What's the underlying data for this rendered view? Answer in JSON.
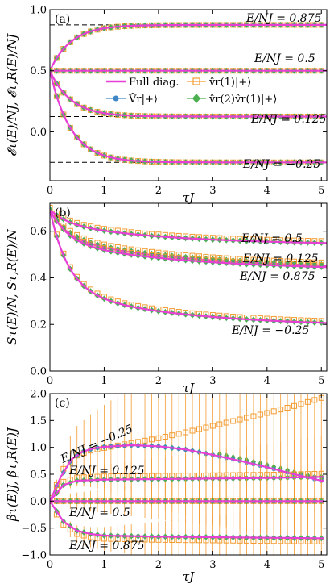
{
  "chart_data": [
    {
      "type": "line",
      "panel_label": "(a)",
      "xlabel": "τJ",
      "ylabel": "𝓔τ(E)/NJ, 𝓔τ,R(E)/NJ",
      "xlim": [
        0,
        5.1
      ],
      "ylim": [
        -0.4,
        1.0
      ],
      "x_ticks": [
        "0",
        "1",
        "2",
        "3",
        "4",
        "5"
      ],
      "y_ticks": [
        "0.0",
        "0.5",
        "1.0"
      ],
      "y_tick_values": [
        0.0,
        0.5,
        1.0
      ],
      "grid": false,
      "reference_lines": [
        0.875,
        0.5,
        0.125,
        -0.25
      ],
      "annotations": [
        "E/NJ = 0.875",
        "E/NJ = 0.5",
        "E/NJ = 0.125",
        "E/NJ = −0.25"
      ],
      "legend": {
        "placement": "center",
        "entries": [
          "Full diag.",
          "V̂r|+⟩",
          "v̂r(1)|+⟩",
          "v̂r(2)v̂r(1)|+⟩"
        ]
      },
      "series": [
        {
          "label": "E/NJ = 0.875",
          "start": 0.5,
          "final": 0.875,
          "rate": 2.6
        },
        {
          "label": "E/NJ = 0.5",
          "start": 0.5,
          "final": 0.5,
          "rate": 2.6
        },
        {
          "label": "E/NJ = 0.125",
          "start": 0.5,
          "final": 0.125,
          "rate": 2.6
        },
        {
          "label": "E/NJ = −0.25",
          "start": 0.5,
          "final": -0.25,
          "rate": 2.6
        }
      ]
    },
    {
      "type": "line",
      "panel_label": "(b)",
      "xlabel": "τJ",
      "ylabel": "Sτ(E)/N, Sτ,R(E)/N",
      "xlim": [
        0,
        5.1
      ],
      "ylim": [
        0.0,
        0.72
      ],
      "x_ticks": [
        "0",
        "1",
        "2",
        "3",
        "4",
        "5"
      ],
      "y_ticks": [
        "0.0",
        "0.2",
        "0.4",
        "0.6"
      ],
      "y_tick_values": [
        0.0,
        0.2,
        0.4,
        0.6
      ],
      "grid": false,
      "annotations": [
        "E/NJ = 0.5",
        "E/NJ = 0.125",
        "E/NJ = 0.875",
        "E/NJ = −0.25"
      ],
      "series": [
        {
          "label": "E/NJ = 0.5",
          "start": 0.693,
          "final": 0.54,
          "fast": 0.06,
          "fast_rate": 3.0,
          "slow_rate": 0.45
        },
        {
          "label": "E/NJ = 0.125",
          "start": 0.693,
          "final": 0.44,
          "fast": 0.12,
          "fast_rate": 3.0,
          "slow_rate": 0.4
        },
        {
          "label": "E/NJ = 0.875",
          "start": 0.693,
          "final": 0.43,
          "fast": 0.14,
          "fast_rate": 3.0,
          "slow_rate": 0.4
        },
        {
          "label": "E/NJ = −0.25",
          "start": 0.693,
          "final": 0.19,
          "fast": 0.34,
          "fast_rate": 3.0,
          "slow_rate": 0.45
        }
      ]
    },
    {
      "type": "line",
      "panel_label": "(c)",
      "xlabel": "τJ",
      "ylabel": "βτ(E)J, βτ,R(E)J",
      "xlim": [
        0,
        5.1
      ],
      "ylim": [
        -1.0,
        2.0
      ],
      "x_ticks": [
        "0",
        "1",
        "2",
        "3",
        "4",
        "5"
      ],
      "y_ticks": [
        "−1.0",
        "−0.5",
        "0.0",
        "0.5",
        "1.0",
        "1.5",
        "2.0"
      ],
      "y_tick_values": [
        -1.0,
        -0.5,
        0.0,
        0.5,
        1.0,
        1.5,
        2.0
      ],
      "grid": false,
      "annotations": [
        "E/NJ = −0.25",
        "E/NJ = 0.125",
        "E/NJ = 0.5",
        "E/NJ = 0.875"
      ],
      "series": [
        {
          "label": "E/NJ = −0.25 full diag.",
          "points": [
            [
              0,
              0
            ],
            [
              0.2,
              0.45
            ],
            [
              0.4,
              0.78
            ],
            [
              0.6,
              0.92
            ],
            [
              0.8,
              0.98
            ],
            [
              1,
              1.01
            ],
            [
              1.5,
              1.04
            ],
            [
              2,
              1.02
            ],
            [
              2.5,
              0.96
            ],
            [
              3,
              0.86
            ],
            [
              3.5,
              0.75
            ],
            [
              4,
              0.63
            ],
            [
              4.5,
              0.5
            ],
            [
              5,
              0.38
            ]
          ]
        },
        {
          "label": "E/NJ = −0.25 v̂r(1)|+⟩",
          "points": [
            [
              0,
              0
            ],
            [
              0.25,
              0.6
            ],
            [
              0.5,
              0.85
            ],
            [
              0.75,
              0.94
            ],
            [
              1,
              0.99
            ],
            [
              1.5,
              1.08
            ],
            [
              2,
              1.17
            ],
            [
              2.5,
              1.28
            ],
            [
              3,
              1.4
            ],
            [
              3.5,
              1.52
            ],
            [
              4,
              1.64
            ],
            [
              4.5,
              1.77
            ],
            [
              5,
              1.92
            ]
          ]
        },
        {
          "label": "E/NJ = 0.125",
          "points": [
            [
              0,
              0
            ],
            [
              0.25,
              0.3
            ],
            [
              0.5,
              0.38
            ],
            [
              1,
              0.4
            ],
            [
              2,
              0.41
            ],
            [
              3,
              0.42
            ],
            [
              4,
              0.43
            ],
            [
              5,
              0.45
            ]
          ]
        },
        {
          "label": "E/NJ = 0.5",
          "points": [
            [
              0,
              0
            ],
            [
              1,
              0
            ],
            [
              2,
              0
            ],
            [
              3,
              0
            ],
            [
              4,
              0
            ],
            [
              5,
              0
            ]
          ]
        },
        {
          "label": "E/NJ = 0.875",
          "points": [
            [
              0,
              0
            ],
            [
              0.25,
              -0.38
            ],
            [
              0.5,
              -0.55
            ],
            [
              0.75,
              -0.61
            ],
            [
              1,
              -0.64
            ],
            [
              2,
              -0.66
            ],
            [
              3,
              -0.67
            ],
            [
              4,
              -0.68
            ],
            [
              5,
              -0.69
            ]
          ]
        }
      ]
    }
  ],
  "colors": {
    "full_diag": "#e63fd6",
    "V_r": "#3f86c6",
    "v_r1": "#f39c32",
    "v_r2v_r1": "#4caf50"
  }
}
